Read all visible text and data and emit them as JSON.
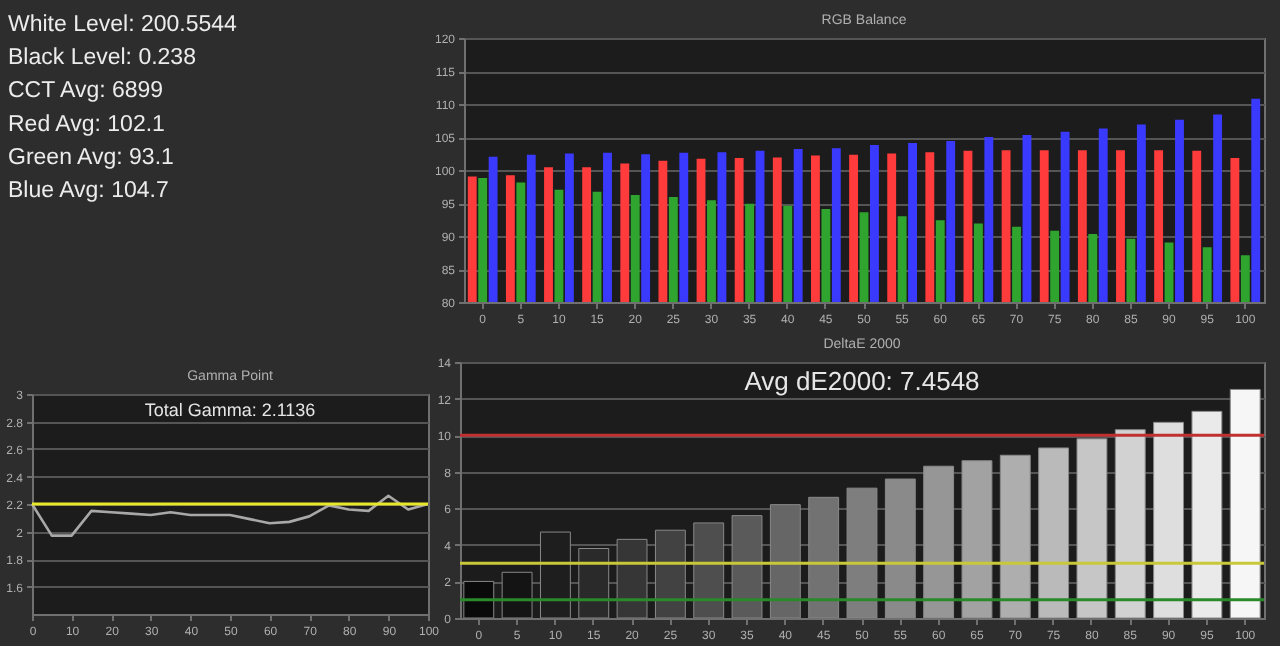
{
  "chart_data": [
    {
      "type": "other",
      "annotations": [
        "White Level: 200.5544",
        "Black Level: 0.238",
        "CCT Avg: 6899",
        "Red Avg: 102.1",
        "Green Avg: 93.1",
        "Blue Avg: 104.7"
      ]
    },
    {
      "type": "bar",
      "title": "RGB Balance",
      "categories": [
        "0",
        "5",
        "10",
        "15",
        "20",
        "25",
        "30",
        "35",
        "40",
        "45",
        "50",
        "55",
        "60",
        "65",
        "70",
        "75",
        "80",
        "85",
        "90",
        "95",
        "100"
      ],
      "series": [
        {
          "color": "#ff3b3b",
          "values": [
            99.0,
            99.2,
            100.4,
            100.4,
            101.0,
            101.4,
            101.7,
            101.8,
            101.9,
            102.2,
            102.3,
            102.5,
            102.7,
            102.9,
            103.0,
            103.0,
            103.0,
            103.0,
            103.0,
            102.9,
            101.8
          ]
        },
        {
          "color": "#2fa52f",
          "values": [
            98.8,
            98.1,
            97.0,
            96.7,
            96.2,
            95.9,
            95.4,
            94.9,
            94.6,
            94.1,
            93.6,
            93.0,
            92.4,
            91.9,
            91.4,
            90.8,
            90.3,
            89.6,
            89.0,
            88.3,
            87.1
          ]
        },
        {
          "color": "#3a3aff",
          "values": [
            102.0,
            102.3,
            102.5,
            102.6,
            102.4,
            102.6,
            102.7,
            102.9,
            103.2,
            103.3,
            103.8,
            104.1,
            104.4,
            105.0,
            105.3,
            105.8,
            106.3,
            106.9,
            107.6,
            108.4,
            110.8
          ]
        }
      ],
      "ylim": [
        80,
        120
      ],
      "yticks": [
        80,
        85,
        90,
        95,
        100,
        105,
        110,
        115,
        120
      ],
      "grid": "y"
    },
    {
      "type": "line",
      "title": "Gamma Point",
      "x": [
        0,
        5,
        10,
        15,
        20,
        25,
        30,
        35,
        40,
        45,
        50,
        55,
        60,
        65,
        70,
        75,
        80,
        85,
        90,
        95,
        100
      ],
      "series": [
        {
          "color": "#a8a8a8",
          "values": [
            2.2,
            1.97,
            1.97,
            2.15,
            2.14,
            2.13,
            2.12,
            2.14,
            2.12,
            2.12,
            2.12,
            2.09,
            2.06,
            2.07,
            2.11,
            2.19,
            2.16,
            2.15,
            2.26,
            2.16,
            2.2
          ]
        }
      ],
      "xlim": [
        0,
        100
      ],
      "xticks": [
        0,
        10,
        20,
        30,
        40,
        50,
        60,
        70,
        80,
        90,
        100
      ],
      "ylim": [
        1.4,
        3
      ],
      "yticks": [
        1.6,
        1.8,
        2,
        2.2,
        2.4,
        2.6,
        2.8,
        3
      ],
      "grid": "y",
      "ref_lines": [
        {
          "axis": "y",
          "value": 2.2,
          "color": "#e8e82a"
        }
      ],
      "annotations": [
        "Total Gamma: 2.1136"
      ]
    },
    {
      "type": "bar",
      "title": "DeltaE 2000",
      "categories": [
        "0",
        "5",
        "10",
        "15",
        "20",
        "25",
        "30",
        "35",
        "40",
        "45",
        "50",
        "55",
        "60",
        "65",
        "70",
        "75",
        "80",
        "85",
        "90",
        "95",
        "100"
      ],
      "values": [
        2.0,
        2.5,
        4.7,
        3.8,
        4.3,
        4.8,
        5.2,
        5.6,
        6.2,
        6.6,
        7.1,
        7.6,
        8.3,
        8.6,
        8.9,
        9.3,
        9.8,
        10.3,
        10.7,
        11.3,
        12.5
      ],
      "colors": [
        "#0a0a0a",
        "#141414",
        "#1e1e1e",
        "#2a2a2a",
        "#363636",
        "#424242",
        "#4e4e4e",
        "#5a5a5a",
        "#666666",
        "#727272",
        "#7e7e7e",
        "#8a8a8a",
        "#969696",
        "#a2a2a2",
        "#aeaeae",
        "#bababa",
        "#c6c6c6",
        "#d2d2d2",
        "#dedede",
        "#eaeaea",
        "#f6f6f6"
      ],
      "ylim": [
        0,
        14
      ],
      "yticks": [
        0,
        2,
        4,
        6,
        8,
        10,
        12,
        14
      ],
      "grid": "y",
      "ref_lines": [
        {
          "axis": "y",
          "value": 10,
          "color": "#c03030"
        },
        {
          "axis": "y",
          "value": 3,
          "color": "#c8c83a"
        },
        {
          "axis": "y",
          "value": 1,
          "color": "#2a8a2a"
        }
      ],
      "annotations": [
        "Avg dE2000: 7.4548"
      ]
    }
  ]
}
